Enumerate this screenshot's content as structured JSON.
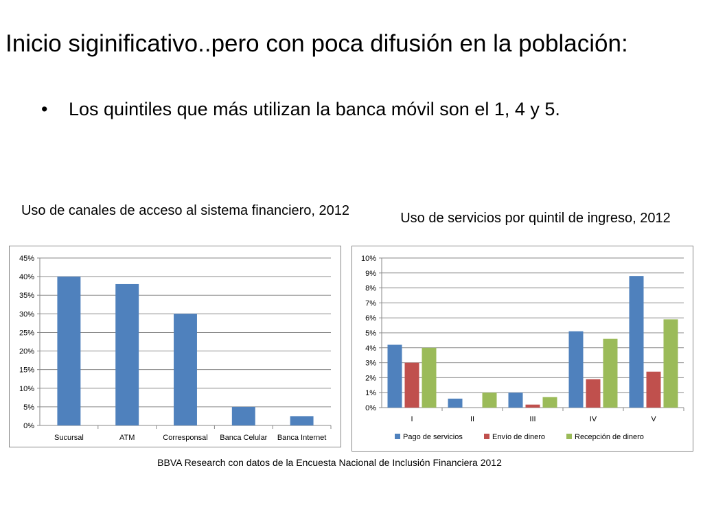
{
  "slide": {
    "title": "Inicio siginificativo..pero con poca difusión en la población:",
    "bullet_symbol": "•",
    "bullet": "Los quintiles que más utilizan la banca móvil son el 1, 4 y 5.",
    "source": "BBVA Research con datos de la Encuesta Nacional de Inclusión Financiera 2012"
  },
  "chart_data": [
    {
      "type": "bar",
      "title": "Uso de canales de acceso al sistema financiero, 2012",
      "categories": [
        "Sucursal",
        "ATM",
        "Corresponsal",
        "Banca Celular",
        "Banca Internet"
      ],
      "values": [
        40,
        38,
        30,
        5,
        2.5
      ],
      "unit": "%",
      "ylim": [
        0,
        45
      ],
      "yticks": [
        0,
        5,
        10,
        15,
        20,
        25,
        30,
        35,
        40,
        45
      ],
      "grid": true,
      "color": "#4F81BD"
    },
    {
      "type": "bar",
      "title": "Uso de servicios por quintil de ingreso, 2012",
      "categories": [
        "I",
        "II",
        "III",
        "IV",
        "V"
      ],
      "series": [
        {
          "name": "Pago de servicios",
          "values": [
            4.2,
            0.6,
            1.0,
            5.1,
            8.8
          ],
          "color": "#4F81BD"
        },
        {
          "name": "Envío de dinero",
          "values": [
            3.0,
            0.0,
            0.2,
            1.9,
            2.4
          ],
          "color": "#C0504D"
        },
        {
          "name": "Recepción de dinero",
          "values": [
            4.0,
            1.0,
            0.7,
            4.6,
            5.9
          ],
          "color": "#9BBB59"
        }
      ],
      "unit": "%",
      "ylim": [
        0,
        10
      ],
      "yticks": [
        0,
        1,
        2,
        3,
        4,
        5,
        6,
        7,
        8,
        9,
        10
      ],
      "grid": true,
      "legend": "bottom"
    }
  ]
}
